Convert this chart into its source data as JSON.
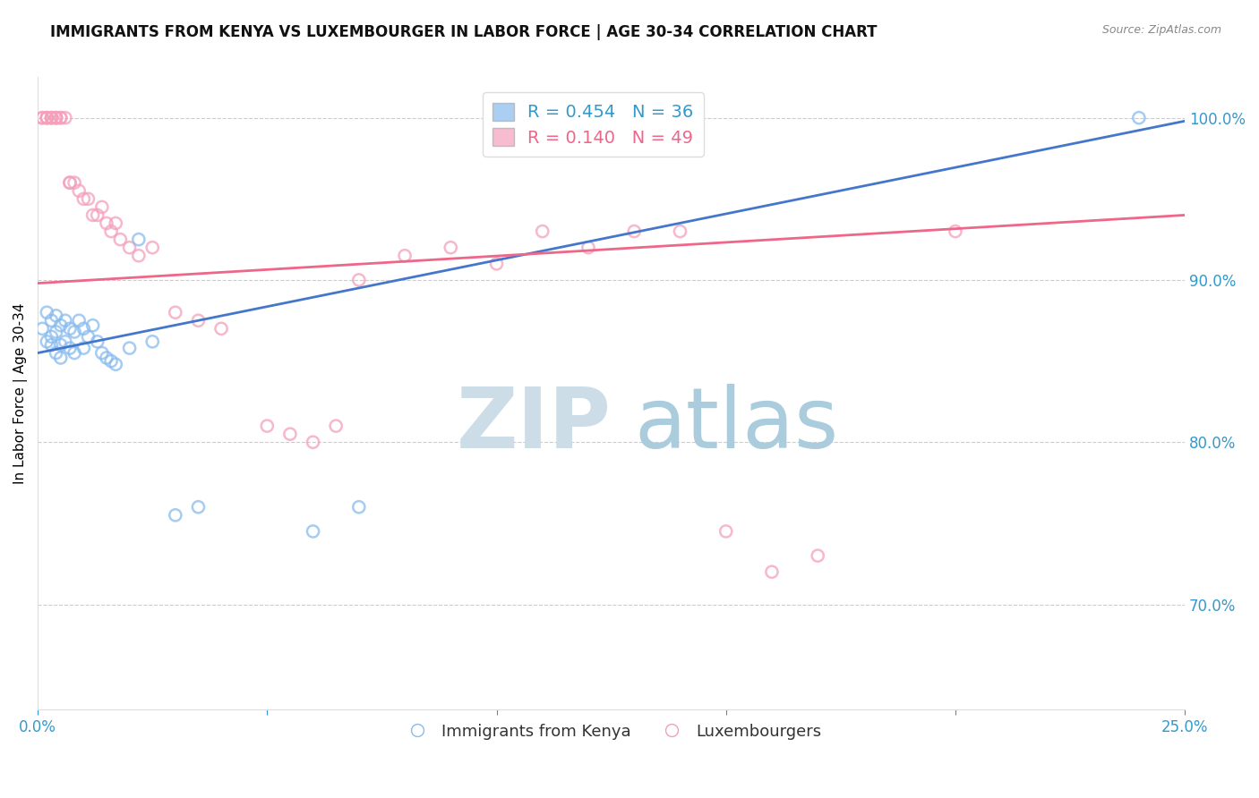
{
  "title": "IMMIGRANTS FROM KENYA VS LUXEMBOURGER IN LABOR FORCE | AGE 30-34 CORRELATION CHART",
  "source": "Source: ZipAtlas.com",
  "ylabel": "In Labor Force | Age 30-34",
  "ytick_labels": [
    "70.0%",
    "80.0%",
    "90.0%",
    "100.0%"
  ],
  "ytick_values": [
    0.7,
    0.8,
    0.9,
    1.0
  ],
  "xlim": [
    0.0,
    0.25
  ],
  "ylim": [
    0.635,
    1.025
  ],
  "kenya_scatter": [
    [
      0.001,
      0.87
    ],
    [
      0.002,
      0.88
    ],
    [
      0.002,
      0.862
    ],
    [
      0.003,
      0.875
    ],
    [
      0.003,
      0.865
    ],
    [
      0.003,
      0.86
    ],
    [
      0.004,
      0.878
    ],
    [
      0.004,
      0.868
    ],
    [
      0.004,
      0.855
    ],
    [
      0.005,
      0.872
    ],
    [
      0.005,
      0.86
    ],
    [
      0.005,
      0.852
    ],
    [
      0.006,
      0.875
    ],
    [
      0.006,
      0.862
    ],
    [
      0.007,
      0.87
    ],
    [
      0.007,
      0.858
    ],
    [
      0.008,
      0.868
    ],
    [
      0.008,
      0.855
    ],
    [
      0.009,
      0.875
    ],
    [
      0.01,
      0.87
    ],
    [
      0.01,
      0.858
    ],
    [
      0.011,
      0.865
    ],
    [
      0.012,
      0.872
    ],
    [
      0.013,
      0.862
    ],
    [
      0.014,
      0.855
    ],
    [
      0.015,
      0.852
    ],
    [
      0.016,
      0.85
    ],
    [
      0.017,
      0.848
    ],
    [
      0.02,
      0.858
    ],
    [
      0.022,
      0.925
    ],
    [
      0.025,
      0.862
    ],
    [
      0.03,
      0.755
    ],
    [
      0.035,
      0.76
    ],
    [
      0.06,
      0.745
    ],
    [
      0.07,
      0.76
    ],
    [
      0.24,
      1.0
    ]
  ],
  "lux_scatter": [
    [
      0.001,
      1.0
    ],
    [
      0.001,
      1.0
    ],
    [
      0.002,
      1.0
    ],
    [
      0.002,
      1.0
    ],
    [
      0.002,
      1.0
    ],
    [
      0.003,
      1.0
    ],
    [
      0.003,
      1.0
    ],
    [
      0.003,
      1.0
    ],
    [
      0.004,
      1.0
    ],
    [
      0.004,
      1.0
    ],
    [
      0.004,
      1.0
    ],
    [
      0.005,
      1.0
    ],
    [
      0.005,
      1.0
    ],
    [
      0.006,
      1.0
    ],
    [
      0.007,
      0.96
    ],
    [
      0.007,
      0.96
    ],
    [
      0.008,
      0.96
    ],
    [
      0.009,
      0.955
    ],
    [
      0.01,
      0.95
    ],
    [
      0.011,
      0.95
    ],
    [
      0.012,
      0.94
    ],
    [
      0.013,
      0.94
    ],
    [
      0.014,
      0.945
    ],
    [
      0.015,
      0.935
    ],
    [
      0.016,
      0.93
    ],
    [
      0.017,
      0.935
    ],
    [
      0.018,
      0.925
    ],
    [
      0.02,
      0.92
    ],
    [
      0.022,
      0.915
    ],
    [
      0.025,
      0.92
    ],
    [
      0.03,
      0.88
    ],
    [
      0.035,
      0.875
    ],
    [
      0.04,
      0.87
    ],
    [
      0.05,
      0.81
    ],
    [
      0.055,
      0.805
    ],
    [
      0.06,
      0.8
    ],
    [
      0.065,
      0.81
    ],
    [
      0.07,
      0.9
    ],
    [
      0.08,
      0.915
    ],
    [
      0.09,
      0.92
    ],
    [
      0.1,
      0.91
    ],
    [
      0.11,
      0.93
    ],
    [
      0.12,
      0.92
    ],
    [
      0.13,
      0.93
    ],
    [
      0.14,
      0.93
    ],
    [
      0.15,
      0.745
    ],
    [
      0.16,
      0.72
    ],
    [
      0.17,
      0.73
    ],
    [
      0.2,
      0.93
    ]
  ],
  "kenya_line": [
    [
      0.0,
      0.855
    ],
    [
      0.25,
      0.998
    ]
  ],
  "lux_line": [
    [
      0.0,
      0.898
    ],
    [
      0.25,
      0.94
    ]
  ],
  "scatter_size": 90,
  "kenya_color": "#88bbee",
  "lux_color": "#f4a0bb",
  "kenya_line_color": "#4477cc",
  "lux_line_color": "#ee6688",
  "bg_color": "#ffffff",
  "title_fontsize": 12,
  "axis_color": "#3399cc",
  "grid_color": "#cccccc",
  "ylabel_fontsize": 11
}
